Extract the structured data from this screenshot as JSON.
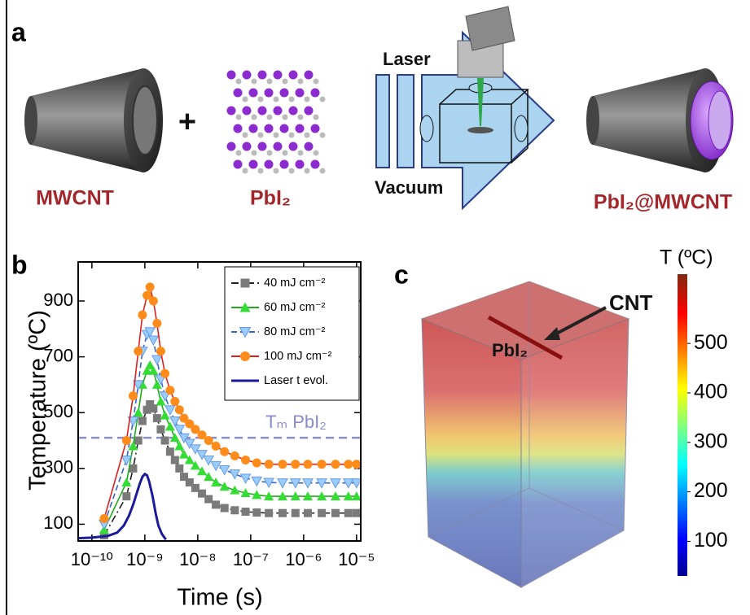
{
  "panel_labels": [
    "a",
    "b",
    "c"
  ],
  "panel_a": {
    "plus": "+",
    "mwcnt": "MWCNT",
    "pbi2": "PbI₂",
    "laser": "Laser",
    "vacuum": "Vacuum",
    "product": "PbI₂@MWCNT"
  },
  "chart_data": {
    "type": "line",
    "xlabel": "Time (s)",
    "ylabel": "Temperature (ºC)",
    "xscale": "log",
    "xlim": [
      5.5e-11,
      1.2e-05
    ],
    "ylim": [
      40,
      1040
    ],
    "xticks": [
      {
        "value": 1e-10,
        "label": "10⁻¹⁰"
      },
      {
        "value": 1e-09,
        "label": "10⁻⁹"
      },
      {
        "value": 1e-08,
        "label": "10⁻⁸"
      },
      {
        "value": 1e-07,
        "label": "10⁻⁷"
      },
      {
        "value": 1e-06,
        "label": "10⁻⁶"
      },
      {
        "value": 1e-05,
        "label": "10⁻⁵"
      }
    ],
    "yticks": [
      100,
      300,
      500,
      700,
      900
    ],
    "legend": "upper right",
    "threshold": {
      "label": "Tₘ PbI₂",
      "value": 410,
      "color": "#8a8ac8"
    },
    "x": [
      1.7e-10,
      4.5e-10,
      6e-10,
      7.5e-10,
      9e-10,
      1.1e-09,
      1.25e-09,
      1.45e-09,
      1.7e-09,
      2e-09,
      2.4e-09,
      3e-09,
      3.7e-09,
      4.5e-09,
      5.5e-09,
      7e-09,
      9e-09,
      1.2e-08,
      1.6e-08,
      2.2e-08,
      3.2e-08,
      5e-08,
      8e-08,
      1.3e-07,
      2.2e-07,
      4e-07,
      7e-07,
      1.2e-06,
      2.2e-06,
      4e-06,
      7e-06,
      1e-05
    ],
    "series": [
      {
        "name": "40 mJ cm⁻²",
        "color": "#7a7a7a",
        "line_color": "#222222",
        "line_style": "dashdot",
        "marker": "square",
        "values": [
          60,
          200,
          300,
          400,
          470,
          510,
          530,
          515,
          480,
          440,
          400,
          360,
          330,
          300,
          270,
          250,
          230,
          210,
          190,
          170,
          158,
          150,
          145,
          142,
          140,
          140,
          140,
          140,
          140,
          140,
          140,
          140
        ]
      },
      {
        "name": "60 mJ cm⁻²",
        "color": "#33dd33",
        "line_color": "#22aa22",
        "line_style": "solid",
        "marker": "triangle-up",
        "values": [
          80,
          250,
          380,
          500,
          600,
          650,
          670,
          650,
          600,
          540,
          490,
          450,
          410,
          380,
          350,
          330,
          310,
          290,
          270,
          250,
          235,
          222,
          212,
          205,
          200,
          200,
          200,
          200,
          200,
          200,
          200,
          200
        ]
      },
      {
        "name": "80 mJ cm⁻²",
        "color": "#99ccff",
        "line_color": "#3366cc",
        "line_style": "dashed",
        "marker": "triangle-down",
        "values": [
          100,
          330,
          470,
          600,
          720,
          780,
          790,
          760,
          690,
          620,
          560,
          510,
          470,
          440,
          410,
          390,
          370,
          350,
          330,
          310,
          295,
          280,
          265,
          255,
          250,
          248,
          248,
          248,
          248,
          248,
          248,
          248
        ]
      },
      {
        "name": "100 mJ cm⁻²",
        "color": "#ff8c1a",
        "line_color": "#e02020",
        "line_style": "solid",
        "marker": "circle",
        "values": [
          120,
          400,
          560,
          720,
          850,
          920,
          950,
          900,
          820,
          720,
          640,
          580,
          540,
          510,
          480,
          460,
          440,
          420,
          400,
          380,
          360,
          345,
          330,
          320,
          315,
          315,
          315,
          315,
          315,
          315,
          315,
          315
        ]
      },
      {
        "name": "Laser t evol.",
        "color": "#1a1a9a",
        "line_color": "#1a1a9a",
        "line_style": "solid",
        "marker": "none",
        "x": [
          5.5e-11,
          1e-10,
          2e-10,
          3e-10,
          4e-10,
          5e-10,
          6e-10,
          7e-10,
          8e-10,
          9e-10,
          1e-09,
          1.1e-09,
          1.2e-09,
          1.4e-09,
          1.6e-09,
          1.8e-09,
          2.1e-09,
          2.5e-09
        ],
        "values": [
          50,
          52,
          58,
          70,
          95,
          130,
          170,
          210,
          245,
          270,
          280,
          275,
          255,
          200,
          140,
          95,
          65,
          45
        ]
      }
    ]
  },
  "panel_c": {
    "cnt_label": "CNT",
    "pbi2_label": "PbI₂",
    "colorbar": {
      "title": "T (ºC)",
      "lim": [
        30,
        640
      ],
      "ticks": [
        100,
        200,
        300,
        400,
        500
      ]
    }
  }
}
